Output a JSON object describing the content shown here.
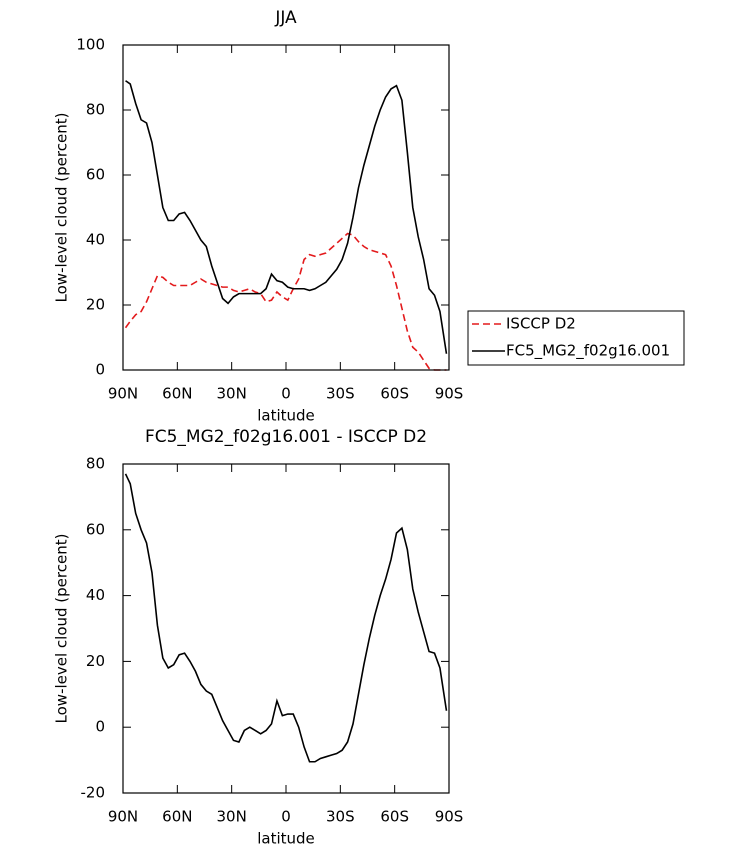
{
  "chart_data": [
    {
      "type": "line",
      "title": "JJA",
      "x_label": "latitude",
      "y_label": "Low-level cloud (percent)",
      "x": [
        88.6,
        86,
        83,
        80,
        77,
        74,
        71,
        68,
        65,
        62,
        59,
        56,
        53,
        50,
        47,
        44,
        41,
        38,
        35,
        32,
        29,
        26,
        23,
        20,
        17,
        14,
        11,
        8,
        5,
        2,
        -1,
        -4,
        -7,
        -10,
        -13,
        -16,
        -19,
        -22,
        -25,
        -28,
        -31,
        -34,
        -37,
        -40,
        -43,
        -46,
        -49,
        -52,
        -55,
        -58,
        -61,
        -64,
        -67,
        -70,
        -73,
        -76,
        -79,
        -82,
        -85,
        -88.6
      ],
      "series": [
        {
          "name": "ISCCP D2",
          "color": "#e31a1c",
          "line_style": "dashed",
          "values": [
            13,
            15,
            17,
            18,
            21,
            25,
            29,
            28.5,
            27,
            26,
            26,
            26,
            26,
            27,
            28,
            27,
            26.5,
            26,
            25.5,
            25.5,
            24.5,
            24,
            24.5,
            25,
            24,
            23.5,
            21,
            21.5,
            24,
            22.5,
            21.5,
            25,
            28,
            34,
            35.5,
            35,
            35.5,
            36,
            37.5,
            39,
            40.5,
            42,
            41.5,
            39.5,
            38,
            37,
            36.5,
            36,
            35.5,
            32,
            26,
            19,
            12,
            7,
            5.5,
            3,
            0.5,
            0,
            0,
            0
          ]
        },
        {
          "name": "FC5_MG2_f02g16.001",
          "color": "#000000",
          "line_style": "solid",
          "values": [
            89,
            88,
            82,
            77,
            76,
            70,
            60,
            50,
            46,
            46,
            48,
            48.5,
            46,
            43,
            40,
            38,
            32,
            27,
            22,
            20.5,
            22.5,
            23.5,
            23.5,
            23.5,
            23.5,
            23.5,
            25,
            29.5,
            27.5,
            27,
            25.5,
            25,
            25,
            25,
            24.5,
            25,
            26,
            27,
            29,
            31,
            34,
            39,
            47,
            56,
            63,
            69,
            75,
            80,
            84,
            86.5,
            87.5,
            83,
            67,
            50,
            41,
            34,
            25,
            23,
            18,
            5
          ]
        }
      ],
      "xlim": [
        90,
        -90
      ],
      "xticks": [
        {
          "value": 90,
          "label": "90N"
        },
        {
          "value": 60,
          "label": "60N"
        },
        {
          "value": 30,
          "label": "30N"
        },
        0,
        {
          "value": -30,
          "label": "30S"
        },
        {
          "value": -60,
          "label": "60S"
        },
        {
          "value": -90,
          "label": "90S"
        }
      ],
      "ylim": [
        0,
        100
      ],
      "yticks": [
        0,
        20,
        40,
        60,
        80,
        100
      ],
      "legend": "outside-right"
    },
    {
      "type": "line",
      "title": "FC5_MG2_f02g16.001 - ISCCP D2",
      "x_label": "latitude",
      "y_label": "Low-level cloud (percent)",
      "x": [
        88.6,
        86,
        83,
        80,
        77,
        74,
        71,
        68,
        65,
        62,
        59,
        56,
        53,
        50,
        47,
        44,
        41,
        38,
        35,
        32,
        29,
        26,
        23,
        20,
        17,
        14,
        11,
        8,
        5,
        2,
        -1,
        -4,
        -7,
        -10,
        -13,
        -16,
        -19,
        -22,
        -25,
        -28,
        -31,
        -34,
        -37,
        -40,
        -43,
        -46,
        -49,
        -52,
        -55,
        -58,
        -61,
        -64,
        -67,
        -70,
        -73,
        -76,
        -79,
        -82,
        -85,
        -88.6
      ],
      "series": [
        {
          "color": "#000000",
          "line_style": "solid",
          "values": [
            77,
            74,
            65,
            60,
            56,
            47,
            31,
            21,
            18,
            19,
            22,
            22.5,
            20,
            17,
            13,
            11,
            10,
            6,
            2,
            -1,
            -4,
            -4.5,
            -1,
            0,
            -1,
            -2,
            -1,
            1,
            8,
            3.5,
            4,
            4,
            0,
            -6,
            -10.5,
            -10.5,
            -9.5,
            -9,
            -8.5,
            -8,
            -7,
            -4.5,
            1,
            10,
            19,
            27,
            34,
            40,
            45,
            51,
            59,
            60.5,
            54,
            42,
            35,
            29,
            23,
            22.5,
            18,
            5
          ]
        }
      ],
      "xlim": [
        90,
        -90
      ],
      "xticks": [
        {
          "value": 90,
          "label": "90N"
        },
        {
          "value": 60,
          "label": "60N"
        },
        {
          "value": 30,
          "label": "30N"
        },
        0,
        {
          "value": -30,
          "label": "30S"
        },
        {
          "value": -60,
          "label": "60S"
        },
        {
          "value": -90,
          "label": "90S"
        }
      ],
      "ylim": [
        -20,
        80
      ],
      "yticks": [
        -20,
        0,
        20,
        40,
        60,
        80
      ]
    }
  ]
}
